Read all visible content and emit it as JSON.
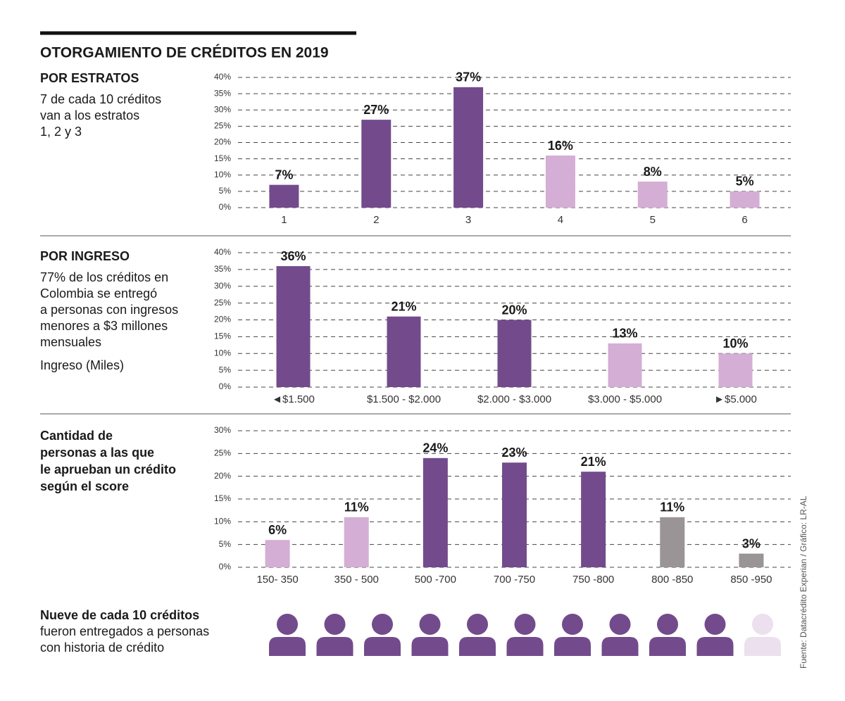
{
  "title": "OTORGAMIENTO DE CRÉDITOS EN 2019",
  "source": "Fuente: Datacrédito Experian / Gráfico: LR-AL",
  "chart_data": [
    {
      "type": "bar",
      "title": [
        "POR ESTRATOS"
      ],
      "subtitle": [
        "7 de cada 10 créditos",
        "van a los estratos",
        "1, 2 y 3"
      ],
      "categories": [
        "1",
        "2",
        "3",
        "4",
        "5",
        "6"
      ],
      "values": [
        7,
        27,
        37,
        16,
        8,
        5
      ],
      "value_labels": [
        "7%",
        "27%",
        "37%",
        "16%",
        "8%",
        "5%"
      ],
      "colors": [
        "#734b8c",
        "#734b8c",
        "#734b8c",
        "#d4aed4",
        "#d4aed4",
        "#d4aed4"
      ],
      "ylim": [
        0,
        40
      ],
      "yticks": [
        {
          "value": 0,
          "label": "0%"
        },
        {
          "value": 5,
          "label": "5%"
        },
        {
          "value": 10,
          "label": "10%"
        },
        {
          "value": 15,
          "label": "15%"
        },
        {
          "value": 20,
          "label": "20%"
        },
        {
          "value": 25,
          "label": "25%"
        },
        {
          "value": 30,
          "label": "30%"
        },
        {
          "value": 35,
          "label": "35%"
        },
        {
          "value": 40,
          "label": "40%"
        }
      ],
      "grid": true
    },
    {
      "type": "bar",
      "title": [
        "POR INGRESO"
      ],
      "subtitle": [
        "77% de los créditos en",
        "Colombia se entregó",
        "a personas con ingresos",
        "menores a $3 millones",
        "mensuales"
      ],
      "x_label": "Ingreso (Miles)",
      "categories": [
        "◄$1.500",
        "$1.500 - $2.000",
        "$2.000 - $3.000",
        "$3.000 - $5.000",
        "►$5.000"
      ],
      "values": [
        36,
        21,
        20,
        13,
        10
      ],
      "value_labels": [
        "36%",
        "21%",
        "20%",
        "13%",
        "10%"
      ],
      "colors": [
        "#734b8c",
        "#734b8c",
        "#734b8c",
        "#d4aed4",
        "#d4aed4"
      ],
      "ylim": [
        0,
        40
      ],
      "yticks": [
        {
          "value": 0,
          "label": "0%"
        },
        {
          "value": 5,
          "label": "5%"
        },
        {
          "value": 10,
          "label": "10%"
        },
        {
          "value": 15,
          "label": "15%"
        },
        {
          "value": 20,
          "label": "20%"
        },
        {
          "value": 25,
          "label": "25%"
        },
        {
          "value": 30,
          "label": "30%"
        },
        {
          "value": 35,
          "label": "35%"
        },
        {
          "value": 40,
          "label": "40%"
        }
      ],
      "grid": true
    },
    {
      "type": "bar",
      "title": [
        "Cantidad de",
        "personas a las que",
        "le aprueban un crédito",
        "según el score"
      ],
      "categories": [
        "150- 350",
        "350 - 500",
        "500 -700",
        "700 -750",
        "750 -800",
        "800 -850",
        "850 -950"
      ],
      "values": [
        6,
        11,
        24,
        23,
        21,
        11,
        3
      ],
      "value_labels": [
        "6%",
        "11%",
        "24%",
        "23%",
        "21%",
        "11%",
        "3%"
      ],
      "colors": [
        "#d4aed4",
        "#d4aed4",
        "#734b8c",
        "#734b8c",
        "#734b8c",
        "#9b9497",
        "#9b9497"
      ],
      "ylim": [
        0,
        30
      ],
      "yticks": [
        {
          "value": 0,
          "label": "0%"
        },
        {
          "value": 5,
          "label": "5%"
        },
        {
          "value": 10,
          "label": "10%"
        },
        {
          "value": 15,
          "label": "15%"
        },
        {
          "value": 20,
          "label": "20%"
        },
        {
          "value": 25,
          "label": "25%"
        },
        {
          "value": 30,
          "label": "30%"
        }
      ],
      "grid": true
    }
  ],
  "footer": {
    "title": "Nueve de cada 10 créditos",
    "lines": [
      "fueron entregados a personas",
      "con historia de crédito"
    ]
  }
}
